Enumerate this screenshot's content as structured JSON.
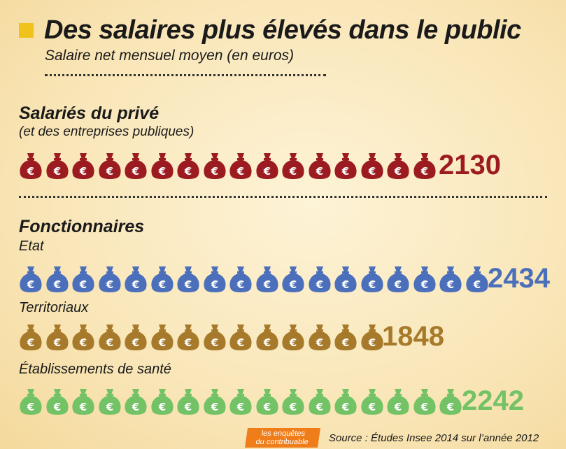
{
  "header": {
    "title": "Des salaires plus élevés dans le public",
    "subtitle": "Salaire net mensuel moyen (en euros)"
  },
  "chart_data": {
    "type": "bar",
    "title": "Des salaires plus élevés dans le public",
    "subtitle": "Salaire net mensuel moyen (en euros)",
    "categories": [
      "Salariés du privé",
      "Etat",
      "Territoriaux",
      "Établissements de santé"
    ],
    "values": [
      2130,
      2434,
      1848,
      2242
    ],
    "icon_counts": [
      16,
      18,
      14,
      17
    ],
    "colors": [
      "#9c1b20",
      "#4b6fba",
      "#a77a2b",
      "#73c266"
    ],
    "icon": "money-bag-euro-icon"
  },
  "sections": {
    "prive": {
      "title": "Salariés du privé",
      "subtitle": "(et des entreprises publiques)",
      "value": "2130"
    },
    "fonctionnaires": {
      "title": "Fonctionnaires",
      "etat": {
        "label": "Etat",
        "value": "2434"
      },
      "territoriaux": {
        "label": "Territoriaux",
        "value": "1848"
      },
      "sante": {
        "label": "Établissements de santé",
        "value": "2242"
      }
    }
  },
  "footer": {
    "logo_line1": "les enquêtes",
    "logo_line2": "du contribuable",
    "source": "Source : Études Insee 2014 sur l’année 2012"
  }
}
